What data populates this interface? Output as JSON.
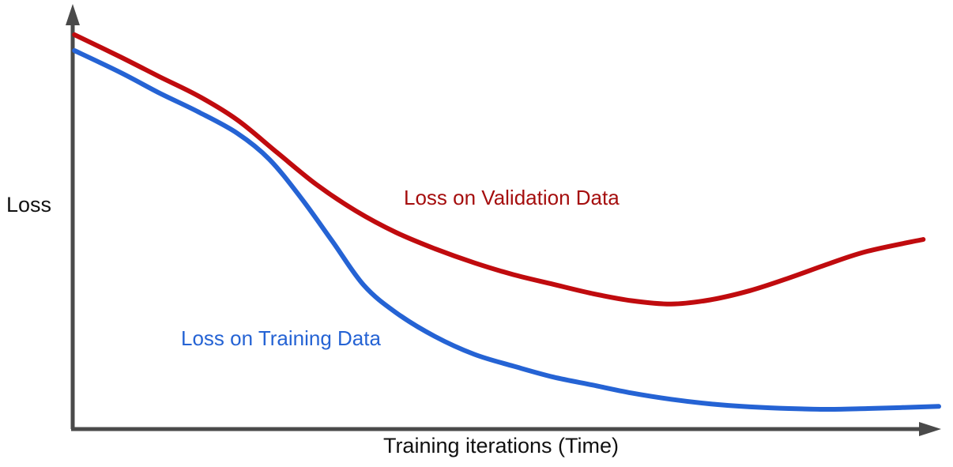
{
  "page": {
    "background": "#ffffff"
  },
  "chart_data": {
    "type": "line",
    "title": "",
    "xlabel": "Training iterations (Time)",
    "ylabel": "Loss",
    "x_range": [
      0,
      100
    ],
    "y_range": [
      0,
      1
    ],
    "grid": false,
    "tick_labels": "none (schematic sketch, unlabeled axes)",
    "legend_position": "inline labels next to curves",
    "axis_color": "#4a4a4a",
    "series": [
      {
        "name": "Loss on Validation Data",
        "color": "#c00b0e",
        "label_color": "#a50e0e",
        "label_pos": [
          38.2,
          0.535
        ],
        "shape_note": "decreases then rises again after a minimum (overfitting)",
        "minimum_at_x": 69,
        "points": [
          [
            0.2,
            0.94
          ],
          [
            5.5,
            0.887
          ],
          [
            10.0,
            0.84
          ],
          [
            14.5,
            0.794
          ],
          [
            19.0,
            0.737
          ],
          [
            23.6,
            0.659
          ],
          [
            28.2,
            0.582
          ],
          [
            32.7,
            0.52
          ],
          [
            37.3,
            0.469
          ],
          [
            41.8,
            0.43
          ],
          [
            46.4,
            0.396
          ],
          [
            50.9,
            0.368
          ],
          [
            55.5,
            0.345
          ],
          [
            60.0,
            0.323
          ],
          [
            64.5,
            0.306
          ],
          [
            69.1,
            0.298
          ],
          [
            73.6,
            0.308
          ],
          [
            78.2,
            0.33
          ],
          [
            82.7,
            0.36
          ],
          [
            87.3,
            0.394
          ],
          [
            91.8,
            0.424
          ],
          [
            98.2,
            0.452
          ]
        ]
      },
      {
        "name": "Loss on Training Data",
        "color": "#2563d4",
        "label_color": "#2563d4",
        "label_pos": [
          12.5,
          0.199
        ],
        "shape_note": "monotonically decreases and flattens near zero",
        "points": [
          [
            0.2,
            0.902
          ],
          [
            5.5,
            0.85
          ],
          [
            10.0,
            0.801
          ],
          [
            14.5,
            0.756
          ],
          [
            19.0,
            0.705
          ],
          [
            22.7,
            0.643
          ],
          [
            26.4,
            0.55
          ],
          [
            30.0,
            0.447
          ],
          [
            33.6,
            0.343
          ],
          [
            37.3,
            0.278
          ],
          [
            41.8,
            0.221
          ],
          [
            46.4,
            0.178
          ],
          [
            50.9,
            0.15
          ],
          [
            55.5,
            0.124
          ],
          [
            60.0,
            0.105
          ],
          [
            64.5,
            0.086
          ],
          [
            69.1,
            0.071
          ],
          [
            73.6,
            0.06
          ],
          [
            78.2,
            0.053
          ],
          [
            82.7,
            0.049
          ],
          [
            87.3,
            0.047
          ],
          [
            91.8,
            0.049
          ],
          [
            100.0,
            0.054
          ]
        ]
      }
    ]
  }
}
